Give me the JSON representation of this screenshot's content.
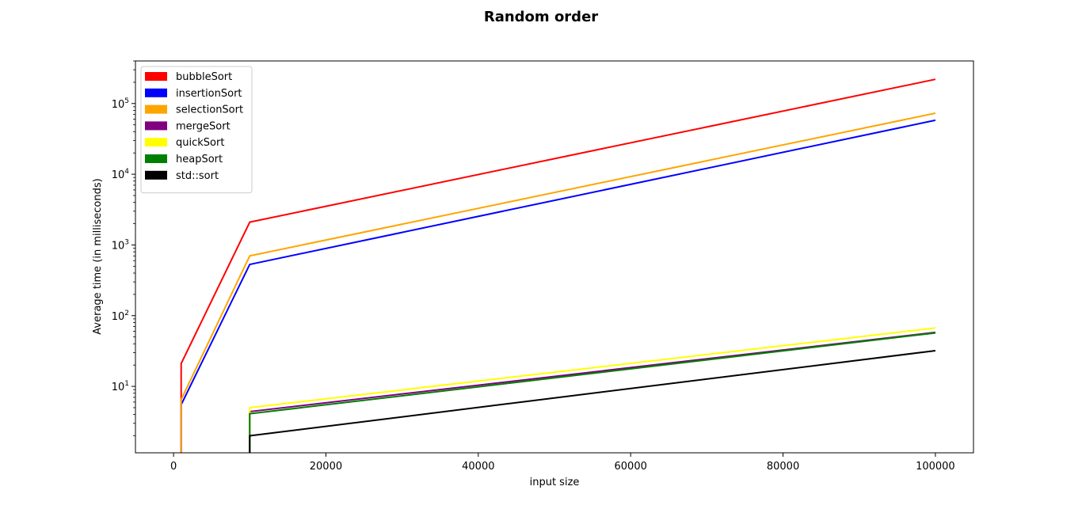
{
  "chart_data": {
    "type": "line",
    "title": "Random order",
    "xlabel": "input size",
    "ylabel": "Average time (in milliseconds)",
    "xlim": [
      -5000,
      105000
    ],
    "ylim": [
      1.15,
      400000
    ],
    "yscale": "log",
    "grid": false,
    "legend_position": "top-left",
    "x_ticks": [
      {
        "value": 0,
        "label": "0"
      },
      {
        "value": 20000,
        "label": "20000"
      },
      {
        "value": 40000,
        "label": "40000"
      },
      {
        "value": 60000,
        "label": "60000"
      },
      {
        "value": 80000,
        "label": "80000"
      },
      {
        "value": 100000,
        "label": "100000"
      }
    ],
    "y_ticks": [
      {
        "value": 10,
        "base": "10",
        "exp": "1"
      },
      {
        "value": 100,
        "base": "10",
        "exp": "2"
      },
      {
        "value": 1000,
        "base": "10",
        "exp": "3"
      },
      {
        "value": 10000,
        "base": "10",
        "exp": "4"
      },
      {
        "value": 100000,
        "base": "10",
        "exp": "5"
      }
    ],
    "series": [
      {
        "name": "bubbleSort",
        "color": "#ff0000",
        "x": [
          1000,
          1000,
          10000,
          100000
        ],
        "y": [
          0.5,
          21,
          2100,
          220000
        ]
      },
      {
        "name": "insertionSort",
        "color": "#0000ff",
        "x": [
          1000,
          1000,
          10000,
          100000
        ],
        "y": [
          0.5,
          5.5,
          530,
          58000
        ]
      },
      {
        "name": "selectionSort",
        "color": "#ffa500",
        "x": [
          1000,
          1000,
          10000,
          100000
        ],
        "y": [
          0.5,
          6.5,
          700,
          73000
        ]
      },
      {
        "name": "mergeSort",
        "color": "#800080",
        "x": [
          10000,
          10000,
          100000
        ],
        "y": [
          0.5,
          4.4,
          58
        ]
      },
      {
        "name": "quickSort",
        "color": "#ffff00",
        "x": [
          10000,
          10000,
          100000
        ],
        "y": [
          0.5,
          5.0,
          67
        ]
      },
      {
        "name": "heapSort",
        "color": "#008000",
        "x": [
          10000,
          10000,
          100000
        ],
        "y": [
          0.5,
          4.1,
          57
        ]
      },
      {
        "name": "std::sort",
        "color": "#000000",
        "x": [
          10000,
          10000,
          100000
        ],
        "y": [
          0.5,
          2.0,
          32
        ]
      }
    ]
  }
}
